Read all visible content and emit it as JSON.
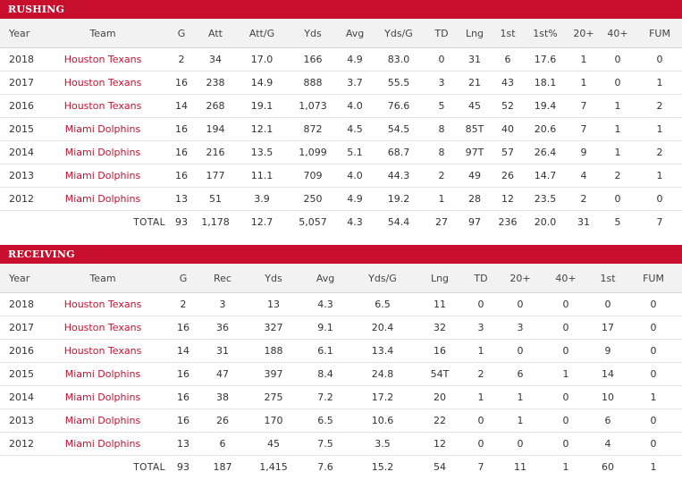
{
  "rushing": {
    "title": "RUSHING",
    "columns": [
      "Year",
      "Team",
      "G",
      "Att",
      "Att/G",
      "Yds",
      "Avg",
      "Yds/G",
      "TD",
      "Lng",
      "1st",
      "1st%",
      "20+",
      "40+",
      "FUM"
    ],
    "rows": [
      [
        "2018",
        "Houston Texans",
        "2",
        "34",
        "17.0",
        "166",
        "4.9",
        "83.0",
        "0",
        "31",
        "6",
        "17.6",
        "1",
        "0",
        "0"
      ],
      [
        "2017",
        "Houston Texans",
        "16",
        "238",
        "14.9",
        "888",
        "3.7",
        "55.5",
        "3",
        "21",
        "43",
        "18.1",
        "1",
        "0",
        "1"
      ],
      [
        "2016",
        "Houston Texans",
        "14",
        "268",
        "19.1",
        "1,073",
        "4.0",
        "76.6",
        "5",
        "45",
        "52",
        "19.4",
        "7",
        "1",
        "2"
      ],
      [
        "2015",
        "Miami Dolphins",
        "16",
        "194",
        "12.1",
        "872",
        "4.5",
        "54.5",
        "8",
        "85T",
        "40",
        "20.6",
        "7",
        "1",
        "1"
      ],
      [
        "2014",
        "Miami Dolphins",
        "16",
        "216",
        "13.5",
        "1,099",
        "5.1",
        "68.7",
        "8",
        "97T",
        "57",
        "26.4",
        "9",
        "1",
        "2"
      ],
      [
        "2013",
        "Miami Dolphins",
        "16",
        "177",
        "11.1",
        "709",
        "4.0",
        "44.3",
        "2",
        "49",
        "26",
        "14.7",
        "4",
        "2",
        "1"
      ],
      [
        "2012",
        "Miami Dolphins",
        "13",
        "51",
        "3.9",
        "250",
        "4.9",
        "19.2",
        "1",
        "28",
        "12",
        "23.5",
        "2",
        "0",
        "0"
      ]
    ],
    "total": [
      "",
      "TOTAL",
      "93",
      "1,178",
      "12.7",
      "5,057",
      "4.3",
      "54.4",
      "27",
      "97",
      "236",
      "20.0",
      "31",
      "5",
      "7"
    ]
  },
  "receiving": {
    "title": "RECEIVING",
    "columns": [
      "Year",
      "Team",
      "G",
      "Rec",
      "Yds",
      "Avg",
      "Yds/G",
      "Lng",
      "TD",
      "20+",
      "40+",
      "1st",
      "FUM"
    ],
    "rows": [
      [
        "2018",
        "Houston Texans",
        "2",
        "3",
        "13",
        "4.3",
        "6.5",
        "11",
        "0",
        "0",
        "0",
        "0",
        "0"
      ],
      [
        "2017",
        "Houston Texans",
        "16",
        "36",
        "327",
        "9.1",
        "20.4",
        "32",
        "3",
        "3",
        "0",
        "17",
        "0"
      ],
      [
        "2016",
        "Houston Texans",
        "14",
        "31",
        "188",
        "6.1",
        "13.4",
        "16",
        "1",
        "0",
        "0",
        "9",
        "0"
      ],
      [
        "2015",
        "Miami Dolphins",
        "16",
        "47",
        "397",
        "8.4",
        "24.8",
        "54T",
        "2",
        "6",
        "1",
        "14",
        "0"
      ],
      [
        "2014",
        "Miami Dolphins",
        "16",
        "38",
        "275",
        "7.2",
        "17.2",
        "20",
        "1",
        "1",
        "0",
        "10",
        "1"
      ],
      [
        "2013",
        "Miami Dolphins",
        "16",
        "26",
        "170",
        "6.5",
        "10.6",
        "22",
        "0",
        "1",
        "0",
        "6",
        "0"
      ],
      [
        "2012",
        "Miami Dolphins",
        "13",
        "6",
        "45",
        "7.5",
        "3.5",
        "12",
        "0",
        "0",
        "0",
        "4",
        "0"
      ]
    ],
    "total": [
      "",
      "TOTAL",
      "93",
      "187",
      "1,415",
      "7.6",
      "15.2",
      "54",
      "7",
      "11",
      "1",
      "60",
      "1"
    ]
  },
  "colors": {
    "accent": "#c8102e",
    "header_bg": "#f2f2f2",
    "team_text": "#c8102e"
  }
}
